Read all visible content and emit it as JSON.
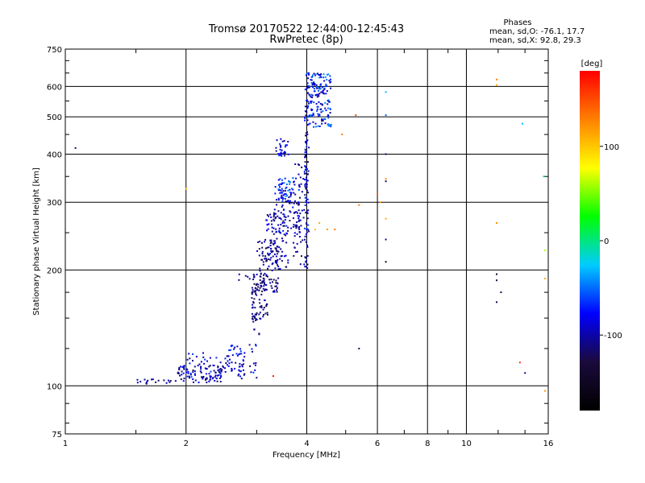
{
  "chart_data": {
    "type": "scatter",
    "title": "Tromsø 20170522 12:44:00-12:45:43",
    "subtitle": "RwPretec (8p)",
    "xlabel": "Frequency [MHz]",
    "ylabel": "Stationary phase Virtual Height [km]",
    "x_scale": "log",
    "y_scale": "log",
    "xlim": [
      1,
      16
    ],
    "ylim": [
      75,
      750
    ],
    "x_ticks": [
      1,
      2,
      4,
      6,
      8,
      10,
      16
    ],
    "y_ticks": [
      75,
      100,
      200,
      300,
      400,
      500,
      600,
      750
    ],
    "grid": true,
    "info": {
      "heading": "Phases",
      "line_o": "mean, sd,O: -76.1, 17.7",
      "line_x": "mean, sd,X:  92.8, 29.3"
    },
    "colorbar": {
      "label": "[deg]",
      "range": [
        -180,
        180
      ],
      "ticks": [
        100,
        0,
        -100
      ],
      "colors": [
        "#000000",
        "#1a0a3c",
        "#0000ff",
        "#00ccff",
        "#00ff00",
        "#ffff00",
        "#ff8000",
        "#ff0000"
      ]
    },
    "segments": [
      {
        "fx": [
          1.5,
          1.9
        ],
        "h": [
          101,
          104
        ],
        "n": 18,
        "p": [
          -125,
          -85
        ]
      },
      {
        "fx": [
          1.9,
          2.5
        ],
        "h": [
          102,
          113
        ],
        "n": 90,
        "p": [
          -130,
          -70
        ]
      },
      {
        "fx": [
          2.0,
          2.8
        ],
        "h": [
          104,
          122
        ],
        "n": 55,
        "p": [
          -120,
          -60
        ]
      },
      {
        "fx": [
          2.5,
          3.0
        ],
        "h": [
          108,
          128
        ],
        "n": 45,
        "p": [
          -110,
          -60
        ]
      },
      {
        "fx": [
          2.85,
          3.05
        ],
        "h": [
          130,
          155
        ],
        "n": 10,
        "p": [
          -110,
          -80
        ]
      },
      {
        "fx": [
          2.7,
          2.95
        ],
        "h": [
          185,
          195
        ],
        "n": 6,
        "p": [
          -120,
          -95
        ]
      },
      {
        "fx": [
          2.9,
          3.2
        ],
        "h": [
          148,
          195
        ],
        "n": 80,
        "p": [
          -140,
          -90
        ]
      },
      {
        "fx": [
          3.0,
          3.4
        ],
        "h": [
          175,
          240
        ],
        "n": 90,
        "p": [
          -130,
          -85
        ]
      },
      {
        "fx": [
          3.15,
          3.6
        ],
        "h": [
          200,
          280
        ],
        "n": 80,
        "p": [
          -125,
          -75
        ]
      },
      {
        "fx": [
          3.3,
          3.85
        ],
        "h": [
          250,
          330
        ],
        "n": 80,
        "p": [
          -120,
          -60
        ]
      },
      {
        "fx": [
          3.4,
          3.75
        ],
        "h": [
          300,
          350
        ],
        "n": 45,
        "p": [
          -90,
          -40
        ]
      },
      {
        "fx": [
          3.35,
          3.6
        ],
        "h": [
          390,
          440
        ],
        "n": 30,
        "p": [
          -110,
          -55
        ]
      },
      {
        "fx": [
          3.7,
          4.0
        ],
        "h": [
          200,
          380
        ],
        "n": 70,
        "p": [
          -125,
          -80
        ]
      },
      {
        "fx": [
          3.95,
          4.05
        ],
        "h": [
          200,
          650
        ],
        "n": 100,
        "p": [
          -130,
          -60
        ]
      },
      {
        "fx": [
          4.0,
          4.6
        ],
        "h": [
          470,
          650
        ],
        "n": 160,
        "p": [
          -110,
          -40
        ]
      }
    ],
    "scattered": [
      {
        "f": 1.06,
        "h": 415,
        "p": -110
      },
      {
        "f": 2.0,
        "h": 325,
        "p": 100
      },
      {
        "f": 3.0,
        "h": 105,
        "p": -110
      },
      {
        "f": 3.3,
        "h": 106,
        "p": 175
      },
      {
        "f": 4.2,
        "h": 255,
        "p": 100
      },
      {
        "f": 4.5,
        "h": 255,
        "p": 120
      },
      {
        "f": 4.7,
        "h": 255,
        "p": 130
      },
      {
        "f": 4.3,
        "h": 265,
        "p": 110
      },
      {
        "f": 4.9,
        "h": 450,
        "p": 130
      },
      {
        "f": 5.3,
        "h": 505,
        "p": 150
      },
      {
        "f": 5.4,
        "h": 295,
        "p": 130
      },
      {
        "f": 5.4,
        "h": 125,
        "p": -120
      },
      {
        "f": 6.0,
        "h": 315,
        "p": 140
      },
      {
        "f": 6.1,
        "h": 300,
        "p": 120
      },
      {
        "f": 6.3,
        "h": 580,
        "p": -30
      },
      {
        "f": 6.3,
        "h": 505,
        "p": -50
      },
      {
        "f": 6.3,
        "h": 400,
        "p": -110
      },
      {
        "f": 6.3,
        "h": 345,
        "p": 120
      },
      {
        "f": 6.3,
        "h": 340,
        "p": -120
      },
      {
        "f": 6.3,
        "h": 272,
        "p": 110
      },
      {
        "f": 6.3,
        "h": 240,
        "p": -110
      },
      {
        "f": 6.3,
        "h": 210,
        "p": -150
      },
      {
        "f": 11.9,
        "h": 625,
        "p": 130
      },
      {
        "f": 11.9,
        "h": 605,
        "p": 110
      },
      {
        "f": 11.9,
        "h": 265,
        "p": 120
      },
      {
        "f": 11.9,
        "h": 195,
        "p": -140
      },
      {
        "f": 11.9,
        "h": 188,
        "p": -130
      },
      {
        "f": 12.2,
        "h": 175,
        "p": -120
      },
      {
        "f": 11.9,
        "h": 165,
        "p": -120
      },
      {
        "f": 13.8,
        "h": 480,
        "p": -30
      },
      {
        "f": 13.6,
        "h": 115,
        "p": 160
      },
      {
        "f": 14.0,
        "h": 108,
        "p": -110
      },
      {
        "f": 15.6,
        "h": 350,
        "p": -10
      },
      {
        "f": 15.7,
        "h": 225,
        "p": 60
      },
      {
        "f": 15.7,
        "h": 190,
        "p": 110
      },
      {
        "f": 15.7,
        "h": 97,
        "p": 120
      }
    ]
  }
}
